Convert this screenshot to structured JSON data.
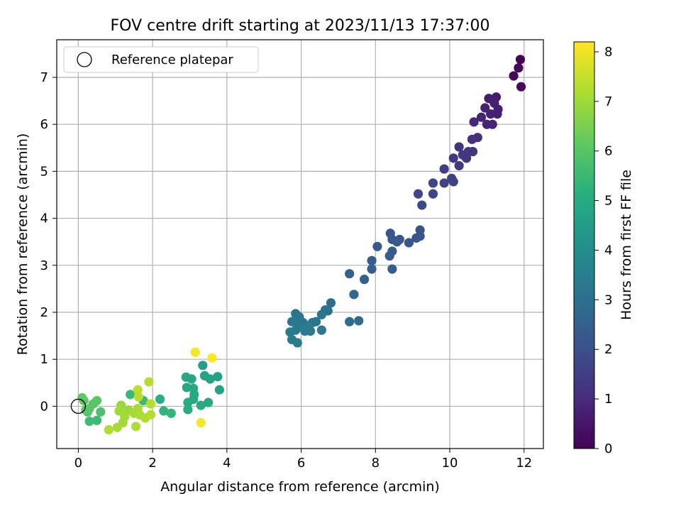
{
  "chart_data": {
    "type": "scatter",
    "title": "FOV centre drift starting at 2023/11/13 17:37:00",
    "xlabel": "Angular distance from reference (arcmin)",
    "ylabel": "Rotation from reference (arcmin)",
    "xlim": [
      -0.58,
      12.52
    ],
    "ylim": [
      -0.9,
      7.8
    ],
    "xticks": [
      0,
      2,
      4,
      6,
      8,
      10,
      12
    ],
    "yticks": [
      0,
      1,
      2,
      3,
      4,
      5,
      6,
      7
    ],
    "grid": true,
    "legend": {
      "position": "top-left",
      "entries": [
        {
          "label": "Reference platepar",
          "marker": "open-circle"
        }
      ]
    },
    "reference_point": {
      "x": 0,
      "y": 0
    },
    "colorbar": {
      "label": "Hours from first FF file",
      "range": [
        0,
        8.2
      ],
      "ticks": [
        0,
        1,
        2,
        3,
        4,
        5,
        6,
        7,
        8
      ],
      "colormap": "viridis"
    },
    "points": [
      {
        "x": 11.9,
        "y": 7.38,
        "h": 0.1
      },
      {
        "x": 11.85,
        "y": 7.2,
        "h": 0.15
      },
      {
        "x": 11.72,
        "y": 7.03,
        "h": 0.2
      },
      {
        "x": 11.92,
        "y": 6.8,
        "h": 0.2
      },
      {
        "x": 11.25,
        "y": 6.58,
        "h": 0.6
      },
      {
        "x": 11.05,
        "y": 6.55,
        "h": 0.65
      },
      {
        "x": 11.2,
        "y": 6.45,
        "h": 0.7
      },
      {
        "x": 10.95,
        "y": 6.35,
        "h": 0.75
      },
      {
        "x": 11.3,
        "y": 6.32,
        "h": 0.7
      },
      {
        "x": 11.1,
        "y": 6.22,
        "h": 0.8
      },
      {
        "x": 11.28,
        "y": 6.22,
        "h": 0.75
      },
      {
        "x": 10.85,
        "y": 6.15,
        "h": 0.85
      },
      {
        "x": 10.65,
        "y": 6.05,
        "h": 0.9
      },
      {
        "x": 11.0,
        "y": 6.0,
        "h": 0.85
      },
      {
        "x": 11.15,
        "y": 6.0,
        "h": 0.85
      },
      {
        "x": 10.75,
        "y": 5.72,
        "h": 1.1
      },
      {
        "x": 10.6,
        "y": 5.68,
        "h": 1.15
      },
      {
        "x": 10.25,
        "y": 5.52,
        "h": 1.25
      },
      {
        "x": 10.5,
        "y": 5.42,
        "h": 1.3
      },
      {
        "x": 10.62,
        "y": 5.42,
        "h": 1.25
      },
      {
        "x": 10.35,
        "y": 5.35,
        "h": 1.3
      },
      {
        "x": 10.1,
        "y": 5.28,
        "h": 1.35
      },
      {
        "x": 10.45,
        "y": 5.28,
        "h": 1.3
      },
      {
        "x": 10.25,
        "y": 5.12,
        "h": 1.4
      },
      {
        "x": 9.85,
        "y": 5.05,
        "h": 1.5
      },
      {
        "x": 10.05,
        "y": 4.85,
        "h": 1.6
      },
      {
        "x": 9.55,
        "y": 4.75,
        "h": 1.65
      },
      {
        "x": 9.85,
        "y": 4.75,
        "h": 1.6
      },
      {
        "x": 10.1,
        "y": 4.78,
        "h": 1.6
      },
      {
        "x": 9.15,
        "y": 4.52,
        "h": 1.75
      },
      {
        "x": 9.55,
        "y": 4.52,
        "h": 1.7
      },
      {
        "x": 9.25,
        "y": 4.28,
        "h": 1.8
      },
      {
        "x": 8.4,
        "y": 3.68,
        "h": 2.2
      },
      {
        "x": 9.2,
        "y": 3.75,
        "h": 2.1
      },
      {
        "x": 8.45,
        "y": 3.55,
        "h": 2.25
      },
      {
        "x": 8.65,
        "y": 3.55,
        "h": 2.2
      },
      {
        "x": 8.58,
        "y": 3.5,
        "h": 2.3
      },
      {
        "x": 8.9,
        "y": 3.48,
        "h": 2.25
      },
      {
        "x": 9.1,
        "y": 3.58,
        "h": 2.15
      },
      {
        "x": 9.2,
        "y": 3.62,
        "h": 2.2
      },
      {
        "x": 8.05,
        "y": 3.4,
        "h": 2.35
      },
      {
        "x": 8.45,
        "y": 3.3,
        "h": 2.35
      },
      {
        "x": 8.38,
        "y": 3.2,
        "h": 2.4
      },
      {
        "x": 7.9,
        "y": 3.1,
        "h": 2.45
      },
      {
        "x": 7.9,
        "y": 2.92,
        "h": 2.5
      },
      {
        "x": 8.45,
        "y": 2.92,
        "h": 2.45
      },
      {
        "x": 7.3,
        "y": 2.82,
        "h": 2.55
      },
      {
        "x": 7.7,
        "y": 2.7,
        "h": 2.6
      },
      {
        "x": 7.42,
        "y": 2.38,
        "h": 2.75
      },
      {
        "x": 7.3,
        "y": 1.8,
        "h": 2.85
      },
      {
        "x": 7.55,
        "y": 1.82,
        "h": 2.85
      },
      {
        "x": 6.8,
        "y": 2.2,
        "h": 3.0
      },
      {
        "x": 6.65,
        "y": 2.05,
        "h": 3.05
      },
      {
        "x": 6.72,
        "y": 2.03,
        "h": 3.05
      },
      {
        "x": 6.55,
        "y": 1.95,
        "h": 3.1
      },
      {
        "x": 5.85,
        "y": 1.97,
        "h": 3.15
      },
      {
        "x": 5.95,
        "y": 1.9,
        "h": 3.2
      },
      {
        "x": 5.75,
        "y": 1.8,
        "h": 3.25
      },
      {
        "x": 5.9,
        "y": 1.78,
        "h": 3.25
      },
      {
        "x": 6.05,
        "y": 1.78,
        "h": 3.25
      },
      {
        "x": 6.3,
        "y": 1.78,
        "h": 3.2
      },
      {
        "x": 6.4,
        "y": 1.8,
        "h": 3.2
      },
      {
        "x": 6.0,
        "y": 1.7,
        "h": 3.3
      },
      {
        "x": 6.2,
        "y": 1.7,
        "h": 3.3
      },
      {
        "x": 5.85,
        "y": 1.62,
        "h": 3.35
      },
      {
        "x": 6.1,
        "y": 1.6,
        "h": 3.35
      },
      {
        "x": 6.25,
        "y": 1.6,
        "h": 3.35
      },
      {
        "x": 5.7,
        "y": 1.58,
        "h": 3.35
      },
      {
        "x": 6.55,
        "y": 1.62,
        "h": 3.3
      },
      {
        "x": 5.75,
        "y": 1.42,
        "h": 3.4
      },
      {
        "x": 5.9,
        "y": 1.35,
        "h": 3.45
      },
      {
        "x": 2.9,
        "y": 0.62,
        "h": 4.9
      },
      {
        "x": 3.05,
        "y": 0.58,
        "h": 4.85
      },
      {
        "x": 3.35,
        "y": 0.87,
        "h": 4.6
      },
      {
        "x": 3.4,
        "y": 0.65,
        "h": 4.7
      },
      {
        "x": 3.55,
        "y": 0.58,
        "h": 4.75
      },
      {
        "x": 3.75,
        "y": 0.63,
        "h": 4.7
      },
      {
        "x": 3.8,
        "y": 0.35,
        "h": 4.75
      },
      {
        "x": 2.92,
        "y": 0.4,
        "h": 4.9
      },
      {
        "x": 3.1,
        "y": 0.38,
        "h": 4.9
      },
      {
        "x": 3.12,
        "y": 0.25,
        "h": 5.0
      },
      {
        "x": 3.1,
        "y": 0.15,
        "h": 5.0
      },
      {
        "x": 2.95,
        "y": 0.08,
        "h": 5.05
      },
      {
        "x": 3.5,
        "y": 0.08,
        "h": 4.9
      },
      {
        "x": 3.3,
        "y": 0.02,
        "h": 4.95
      },
      {
        "x": 2.95,
        "y": -0.07,
        "h": 5.1
      },
      {
        "x": 2.2,
        "y": 0.15,
        "h": 5.15
      },
      {
        "x": 2.3,
        "y": -0.1,
        "h": 5.3
      },
      {
        "x": 2.5,
        "y": -0.15,
        "h": 5.35
      },
      {
        "x": 1.4,
        "y": 0.25,
        "h": 5.5
      },
      {
        "x": 1.75,
        "y": 0.12,
        "h": 5.55
      },
      {
        "x": 0.3,
        "y": -0.32,
        "h": 5.6
      },
      {
        "x": 0.5,
        "y": -0.3,
        "h": 5.6
      },
      {
        "x": 0.6,
        "y": -0.12,
        "h": 5.8
      },
      {
        "x": 0.25,
        "y": -0.12,
        "h": 5.9
      },
      {
        "x": 0.4,
        "y": 0.05,
        "h": 6.0
      },
      {
        "x": 0.5,
        "y": 0.12,
        "h": 6.05
      },
      {
        "x": 0.15,
        "y": 0.12,
        "h": 6.1
      },
      {
        "x": 0.1,
        "y": 0.18,
        "h": 6.15
      },
      {
        "x": 0.2,
        "y": -0.08,
        "h": 6.1
      },
      {
        "x": 0.3,
        "y": -0.05,
        "h": 6.05
      },
      {
        "x": 1.15,
        "y": 0.02,
        "h": 6.9
      },
      {
        "x": 1.35,
        "y": -0.08,
        "h": 6.95
      },
      {
        "x": 1.1,
        "y": -0.1,
        "h": 7.0
      },
      {
        "x": 1.25,
        "y": -0.22,
        "h": 7.05
      },
      {
        "x": 1.5,
        "y": -0.15,
        "h": 7.1
      },
      {
        "x": 1.6,
        "y": -0.05,
        "h": 7.1
      },
      {
        "x": 1.2,
        "y": -0.35,
        "h": 7.0
      },
      {
        "x": 1.05,
        "y": -0.45,
        "h": 7.1
      },
      {
        "x": 0.82,
        "y": -0.5,
        "h": 7.2
      },
      {
        "x": 1.55,
        "y": -0.43,
        "h": 7.2
      },
      {
        "x": 1.65,
        "y": -0.18,
        "h": 7.15
      },
      {
        "x": 1.8,
        "y": -0.25,
        "h": 7.2
      },
      {
        "x": 1.95,
        "y": -0.18,
        "h": 7.25
      },
      {
        "x": 1.95,
        "y": 0.05,
        "h": 7.25
      },
      {
        "x": 1.62,
        "y": 0.2,
        "h": 7.3
      },
      {
        "x": 1.6,
        "y": 0.35,
        "h": 7.35
      },
      {
        "x": 1.9,
        "y": 0.52,
        "h": 7.3
      },
      {
        "x": 3.15,
        "y": 1.15,
        "h": 8.1
      },
      {
        "x": 3.6,
        "y": 1.03,
        "h": 8.15
      },
      {
        "x": 3.3,
        "y": -0.35,
        "h": 8.1
      }
    ]
  }
}
